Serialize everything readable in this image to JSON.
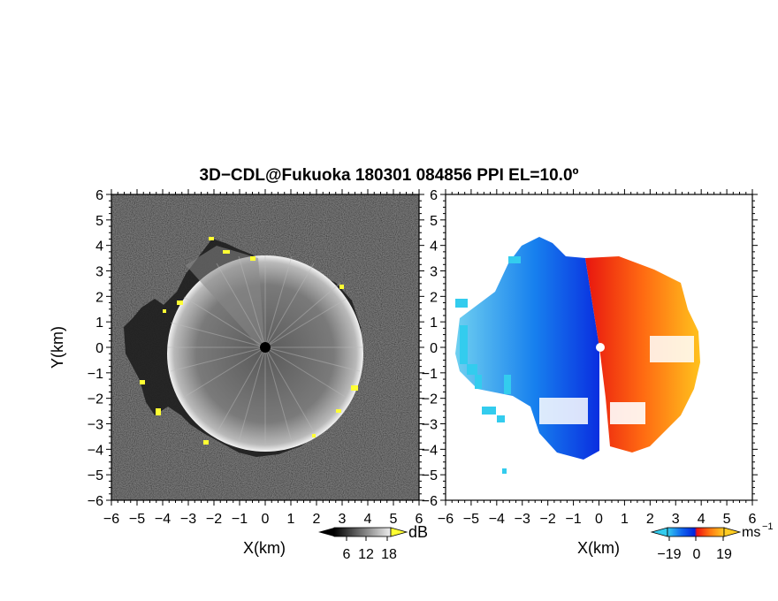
{
  "title": "3D−CDL@Fukuoka 180301 084856 PPI EL=10.0º",
  "panels": [
    {
      "name": "snr",
      "xlabel": "X(km)",
      "ylabel": "Y(km)",
      "xticks": [
        "−6",
        "−5",
        "−4",
        "−3",
        "−2",
        "−1",
        "0",
        "1",
        "2",
        "3",
        "4",
        "5",
        "6"
      ],
      "yticks": [
        "6",
        "5",
        "4",
        "3",
        "2",
        "1",
        "0",
        "−1",
        "−2",
        "−3",
        "−4",
        "−5",
        "−6"
      ],
      "colorbar": {
        "unit": "dB",
        "ticks": [
          "6",
          "12",
          "18"
        ],
        "colors": [
          "#000000",
          "#555555",
          "#aaaaaa",
          "#ffffff",
          "#ffff33"
        ]
      }
    },
    {
      "name": "velocity",
      "xlabel": "X(km)",
      "xticks": [
        "−6",
        "−5",
        "−4",
        "−3",
        "−2",
        "−1",
        "0",
        "1",
        "2",
        "3",
        "4",
        "5",
        "6"
      ],
      "yticks": [
        "6",
        "5",
        "4",
        "3",
        "2",
        "1",
        "0",
        "−1",
        "−2",
        "−3",
        "−4",
        "−5",
        "−6"
      ],
      "colorbar": {
        "unit": "ms",
        "unit_exp": "−1",
        "ticks": [
          "−19",
          "0",
          "19"
        ],
        "colors": [
          "#33ccee",
          "#1166ee",
          "#0022dd",
          "#ee1111",
          "#ff7711",
          "#ffcc22"
        ]
      }
    }
  ]
}
